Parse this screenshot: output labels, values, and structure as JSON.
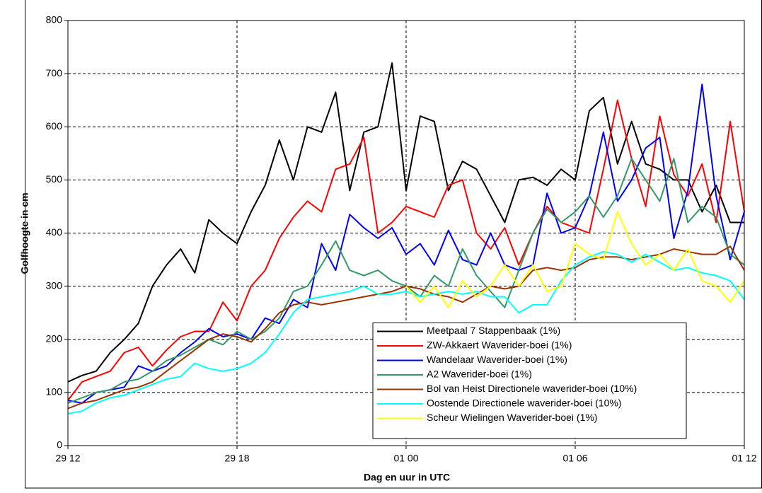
{
  "chart_data": {
    "type": "line",
    "xlabel": "Dag en uur in UTC",
    "ylabel": "Golfhoogte in cm",
    "x": [
      0,
      0.5,
      1,
      1.5,
      2,
      2.5,
      3,
      3.5,
      4,
      4.5,
      5,
      5.5,
      6,
      6.5,
      7,
      7.5,
      8,
      8.5,
      9,
      9.5,
      10,
      10.5,
      11,
      11.5,
      12,
      12.5,
      13,
      13.5,
      14,
      14.5,
      15,
      15.5,
      16,
      16.5,
      17,
      17.5,
      18,
      18.5,
      19,
      19.5,
      20,
      20.5,
      21,
      21.5,
      22,
      22.5,
      23,
      23.5,
      24
    ],
    "xlim": [
      0,
      24
    ],
    "xticks": [
      {
        "value": 0,
        "label": "29 12"
      },
      {
        "value": 6,
        "label": "29 18"
      },
      {
        "value": 12,
        "label": "01 00"
      },
      {
        "value": 18,
        "label": "01 06"
      },
      {
        "value": 24,
        "label": "01 12"
      }
    ],
    "ylim": [
      0,
      800
    ],
    "yticks": [
      0,
      100,
      200,
      300,
      400,
      500,
      600,
      700,
      800
    ],
    "grid": true,
    "legend": "lower right",
    "series": [
      {
        "name": "Meetpaal 7 Stappenbaak (1%)",
        "color": "#000000",
        "values": [
          120,
          132,
          140,
          175,
          200,
          230,
          300,
          340,
          370,
          325,
          425,
          400,
          380,
          440,
          490,
          575,
          500,
          600,
          590,
          665,
          480,
          590,
          600,
          720,
          480,
          620,
          610,
          480,
          535,
          520,
          470,
          420,
          500,
          505,
          490,
          520,
          500,
          630,
          655,
          530,
          610,
          530,
          520,
          500,
          500,
          440,
          490,
          420,
          420
        ]
      },
      {
        "name": "ZW-Akkaert Waverider-boei (1%)",
        "color": "#ff0000",
        "values": [
          85,
          120,
          130,
          140,
          175,
          185,
          150,
          180,
          205,
          215,
          215,
          270,
          235,
          300,
          330,
          390,
          430,
          460,
          440,
          520,
          530,
          580,
          400,
          420,
          450,
          440,
          430,
          490,
          500,
          400,
          370,
          410,
          340,
          400,
          450,
          420,
          410,
          400,
          520,
          650,
          540,
          450,
          620,
          510,
          470,
          530,
          420,
          610,
          440
        ]
      },
      {
        "name": "Wandelaar Waverider-boei (1%)",
        "color": "#0000ff",
        "values": [
          85,
          80,
          100,
          105,
          110,
          150,
          140,
          150,
          175,
          195,
          220,
          205,
          210,
          200,
          240,
          230,
          275,
          260,
          380,
          330,
          435,
          410,
          390,
          410,
          360,
          380,
          340,
          405,
          350,
          340,
          400,
          340,
          330,
          340,
          475,
          400,
          410,
          470,
          590,
          460,
          500,
          560,
          580,
          390,
          480,
          680,
          470,
          350,
          440
        ]
      },
      {
        "name": "A2 Waverider-boei (1%)",
        "color": "#339966",
        "values": [
          80,
          90,
          100,
          105,
          120,
          125,
          140,
          160,
          170,
          185,
          200,
          190,
          215,
          200,
          215,
          240,
          290,
          300,
          340,
          385,
          330,
          320,
          330,
          310,
          300,
          280,
          320,
          300,
          370,
          320,
          290,
          260,
          330,
          400,
          445,
          420,
          440,
          470,
          430,
          470,
          540,
          500,
          460,
          540,
          420,
          450,
          430,
          360,
          340
        ]
      },
      {
        "name": "Bol van Heist Directionele waverider-boei (10%)",
        "color": "#993300",
        "values": [
          70,
          80,
          85,
          95,
          105,
          110,
          120,
          140,
          160,
          180,
          200,
          210,
          205,
          195,
          220,
          250,
          265,
          270,
          265,
          270,
          275,
          280,
          285,
          290,
          300,
          295,
          285,
          280,
          270,
          285,
          300,
          295,
          300,
          330,
          335,
          330,
          335,
          350,
          355,
          355,
          350,
          355,
          360,
          370,
          365,
          360,
          360,
          375,
          330
        ]
      },
      {
        "name": "Oostende Directionele waverider-boei (10%)",
        "color": "#00ffff",
        "values": [
          60,
          65,
          80,
          90,
          95,
          105,
          115,
          125,
          130,
          155,
          145,
          140,
          145,
          155,
          175,
          210,
          250,
          275,
          280,
          285,
          290,
          300,
          285,
          285,
          290,
          280,
          285,
          290,
          285,
          290,
          280,
          280,
          250,
          265,
          265,
          310,
          340,
          355,
          365,
          360,
          345,
          360,
          345,
          330,
          335,
          325,
          320,
          310,
          275
        ]
      },
      {
        "name": "Scheur Wielingen Waverider-boei (1%)",
        "color": "#ffff00",
        "values": [
          null,
          null,
          null,
          null,
          null,
          null,
          null,
          null,
          null,
          null,
          null,
          null,
          null,
          null,
          null,
          null,
          null,
          null,
          null,
          null,
          null,
          null,
          null,
          null,
          300,
          270,
          300,
          260,
          310,
          280,
          300,
          340,
          300,
          340,
          290,
          300,
          380,
          360,
          350,
          440,
          380,
          340,
          360,
          330,
          370,
          310,
          300,
          270,
          310
        ]
      }
    ]
  }
}
